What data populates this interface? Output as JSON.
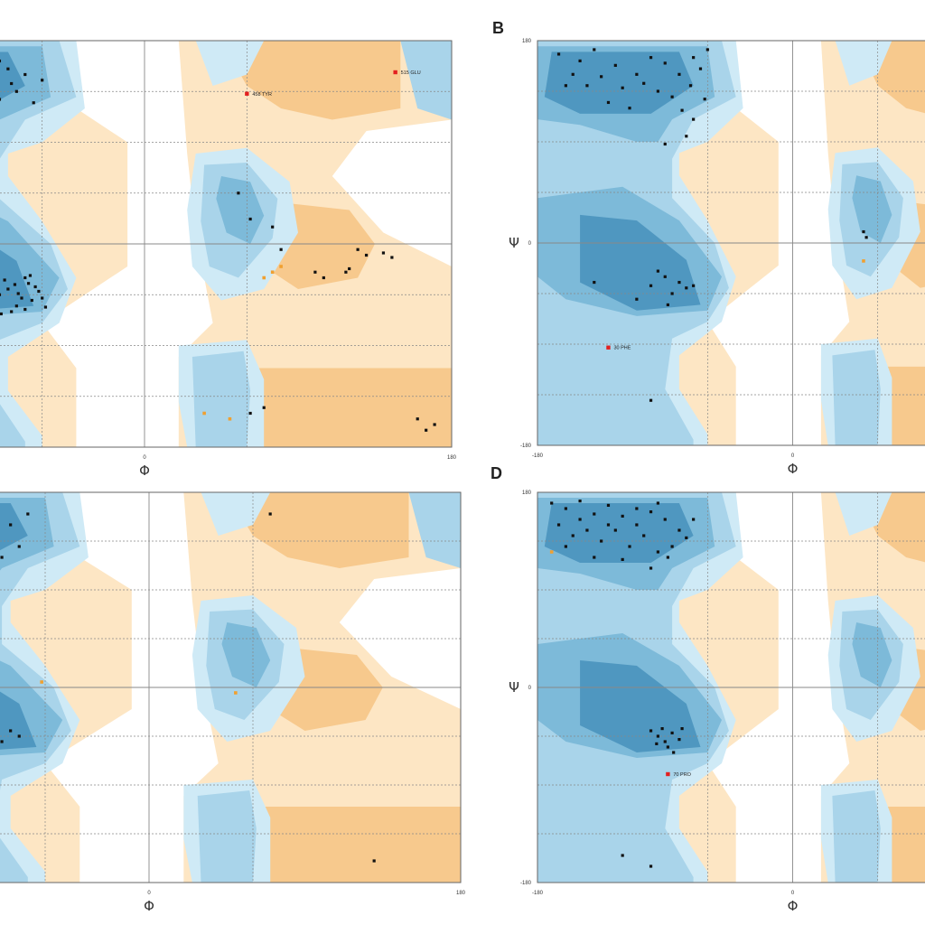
{
  "chart_data": [
    {
      "type": "scatter",
      "panel": "",
      "xlabel": "Φ",
      "ylabel": "",
      "x_tick_labels": [
        "0",
        "180"
      ],
      "y_tick_labels": [],
      "outliers": [
        {
          "phi": 60,
          "psi": 133,
          "label": "458 TYR"
        },
        {
          "phi": 147,
          "psi": 152,
          "label": "515 GLU"
        }
      ],
      "general_points": [
        [
          -162,
          148
        ],
        [
          -150,
          152
        ],
        [
          -140,
          160
        ],
        [
          -130,
          150
        ],
        [
          -120,
          145
        ],
        [
          -110,
          158
        ],
        [
          -100,
          140
        ],
        [
          -90,
          150
        ],
        [
          -80,
          155
        ],
        [
          -75,
          135
        ],
        [
          -160,
          135
        ],
        [
          -145,
          128
        ],
        [
          -135,
          140
        ],
        [
          -125,
          125
        ],
        [
          -115,
          130
        ],
        [
          -105,
          120
        ],
        [
          -95,
          132
        ],
        [
          -85,
          128
        ],
        [
          -78,
          142
        ],
        [
          -70,
          150
        ],
        [
          -155,
          165
        ],
        [
          -140,
          172
        ],
        [
          -125,
          168
        ],
        [
          -110,
          175
        ],
        [
          -95,
          170
        ],
        [
          -85,
          162
        ],
        [
          -65,
          125
        ],
        [
          -130,
          110
        ],
        [
          -90,
          110
        ],
        [
          -60,
          145
        ],
        [
          -72,
          -48
        ],
        [
          -80,
          -40
        ],
        [
          -68,
          -35
        ],
        [
          -75,
          -55
        ],
        [
          -85,
          -45
        ],
        [
          -62,
          -42
        ],
        [
          -70,
          -30
        ],
        [
          -78,
          -60
        ],
        [
          -66,
          -50
        ],
        [
          -82,
          -32
        ],
        [
          -74,
          -44
        ],
        [
          -88,
          -52
        ],
        [
          -64,
          -38
        ],
        [
          -76,
          -36
        ],
        [
          -70,
          -58
        ],
        [
          -60,
          -48
        ],
        [
          -92,
          -42
        ],
        [
          -58,
          -56
        ],
        [
          -84,
          -62
        ],
        [
          -67,
          -28
        ],
        [
          -130,
          10
        ],
        [
          -110,
          -8
        ],
        [
          -100,
          -55
        ],
        [
          -160,
          -150
        ],
        [
          -150,
          -160
        ],
        [
          -140,
          -170
        ],
        [
          55,
          45
        ],
        [
          62,
          22
        ],
        [
          75,
          15
        ],
        [
          80,
          -5
        ],
        [
          125,
          -5
        ],
        [
          130,
          -10
        ],
        [
          145,
          -12
        ],
        [
          140,
          -8
        ],
        [
          120,
          -22
        ],
        [
          118,
          -25
        ],
        [
          100,
          -25
        ],
        [
          105,
          -30
        ],
        [
          62,
          -150
        ],
        [
          70,
          -145
        ],
        [
          160,
          -155
        ],
        [
          170,
          -160
        ],
        [
          165,
          -165
        ]
      ],
      "allowed_points": [
        [
          -118,
          45
        ],
        [
          -100,
          10
        ],
        [
          -125,
          -110
        ],
        [
          -148,
          -170
        ],
        [
          75,
          -25
        ],
        [
          70,
          -30
        ],
        [
          80,
          -20
        ],
        [
          35,
          -150
        ],
        [
          50,
          -155
        ]
      ]
    },
    {
      "type": "scatter",
      "panel": "B",
      "xlabel": "Φ",
      "ylabel": "Ψ",
      "x_tick_labels": [
        "-180",
        "0",
        "180"
      ],
      "y_tick_labels": [
        "180",
        "0",
        "-180"
      ],
      "outliers": [
        {
          "phi": -130,
          "psi": -93,
          "label": "30 PHE"
        }
      ],
      "general_points": [
        [
          -165,
          168
        ],
        [
          -150,
          162
        ],
        [
          -140,
          172
        ],
        [
          -125,
          158
        ],
        [
          -110,
          150
        ],
        [
          -100,
          165
        ],
        [
          -90,
          160
        ],
        [
          -80,
          150
        ],
        [
          -72,
          140
        ],
        [
          -65,
          155
        ],
        [
          -155,
          150
        ],
        [
          -145,
          140
        ],
        [
          -135,
          148
        ],
        [
          -120,
          138
        ],
        [
          -105,
          142
        ],
        [
          -95,
          135
        ],
        [
          -85,
          130
        ],
        [
          -78,
          118
        ],
        [
          -70,
          110
        ],
        [
          -62,
          128
        ],
        [
          -160,
          140
        ],
        [
          -130,
          125
        ],
        [
          -115,
          120
        ],
        [
          -75,
          95
        ],
        [
          -90,
          88
        ],
        [
          -60,
          172
        ],
        [
          -70,
          165
        ],
        [
          -100,
          -38
        ],
        [
          -90,
          -30
        ],
        [
          -80,
          -35
        ],
        [
          -75,
          -40
        ],
        [
          -70,
          -38
        ],
        [
          -85,
          -45
        ],
        [
          -95,
          -25
        ],
        [
          -140,
          -35
        ],
        [
          -110,
          -50
        ],
        [
          -88,
          -55
        ],
        [
          -100,
          -140
        ],
        [
          50,
          10
        ],
        [
          52,
          5
        ]
      ],
      "allowed_points": [
        [
          50,
          -16
        ]
      ]
    },
    {
      "type": "scatter",
      "panel": "",
      "xlabel": "Φ",
      "ylabel": "",
      "x_tick_labels": [
        "0",
        "180"
      ],
      "y_tick_labels": [],
      "outliers": [],
      "general_points": [
        [
          -160,
          150
        ],
        [
          -150,
          158
        ],
        [
          -140,
          165
        ],
        [
          -125,
          155
        ],
        [
          -110,
          160
        ],
        [
          -100,
          148
        ],
        [
          -90,
          140
        ],
        [
          -80,
          150
        ],
        [
          -70,
          160
        ],
        [
          -75,
          130
        ],
        [
          -155,
          140
        ],
        [
          -145,
          125
        ],
        [
          -130,
          135
        ],
        [
          -115,
          145
        ],
        [
          -95,
          128
        ],
        [
          -85,
          120
        ],
        [
          -105,
          118
        ],
        [
          -120,
          -15
        ],
        [
          -110,
          -30
        ],
        [
          -95,
          -45
        ],
        [
          -90,
          -38
        ],
        [
          -85,
          -50
        ],
        [
          -100,
          -55
        ],
        [
          -80,
          -40
        ],
        [
          -75,
          -45
        ],
        [
          -88,
          -30
        ],
        [
          -120,
          -55
        ],
        [
          70,
          160
        ],
        [
          130,
          -160
        ]
      ],
      "allowed_points": [
        [
          -62,
          5
        ],
        [
          50,
          -5
        ]
      ]
    },
    {
      "type": "scatter",
      "panel": "D",
      "xlabel": "Φ",
      "ylabel": "Ψ",
      "x_tick_labels": [
        "-180",
        "0",
        "180"
      ],
      "y_tick_labels": [
        "180",
        "0",
        "-180"
      ],
      "outliers": [
        {
          "phi": -88,
          "psi": -80,
          "label": "70 PRO"
        }
      ],
      "general_points": [
        [
          -170,
          170
        ],
        [
          -160,
          165
        ],
        [
          -150,
          172
        ],
        [
          -140,
          160
        ],
        [
          -130,
          168
        ],
        [
          -120,
          158
        ],
        [
          -110,
          150
        ],
        [
          -100,
          162
        ],
        [
          -90,
          155
        ],
        [
          -80,
          145
        ],
        [
          -165,
          150
        ],
        [
          -155,
          140
        ],
        [
          -145,
          145
        ],
        [
          -135,
          135
        ],
        [
          -125,
          145
        ],
        [
          -115,
          130
        ],
        [
          -105,
          140
        ],
        [
          -95,
          125
        ],
        [
          -85,
          130
        ],
        [
          -75,
          138
        ],
        [
          -160,
          130
        ],
        [
          -140,
          120
        ],
        [
          -120,
          118
        ],
        [
          -100,
          110
        ],
        [
          -88,
          120
        ],
        [
          -70,
          155
        ],
        [
          -150,
          155
        ],
        [
          -130,
          150
        ],
        [
          -110,
          165
        ],
        [
          -95,
          170
        ],
        [
          -100,
          -40
        ],
        [
          -95,
          -45
        ],
        [
          -90,
          -50
        ],
        [
          -85,
          -42
        ],
        [
          -80,
          -48
        ],
        [
          -88,
          -55
        ],
        [
          -92,
          -38
        ],
        [
          -78,
          -38
        ],
        [
          -84,
          -60
        ],
        [
          -96,
          -52
        ],
        [
          -120,
          -155
        ],
        [
          -100,
          -165
        ]
      ],
      "allowed_points": [
        [
          -170,
          125
        ]
      ]
    }
  ]
}
